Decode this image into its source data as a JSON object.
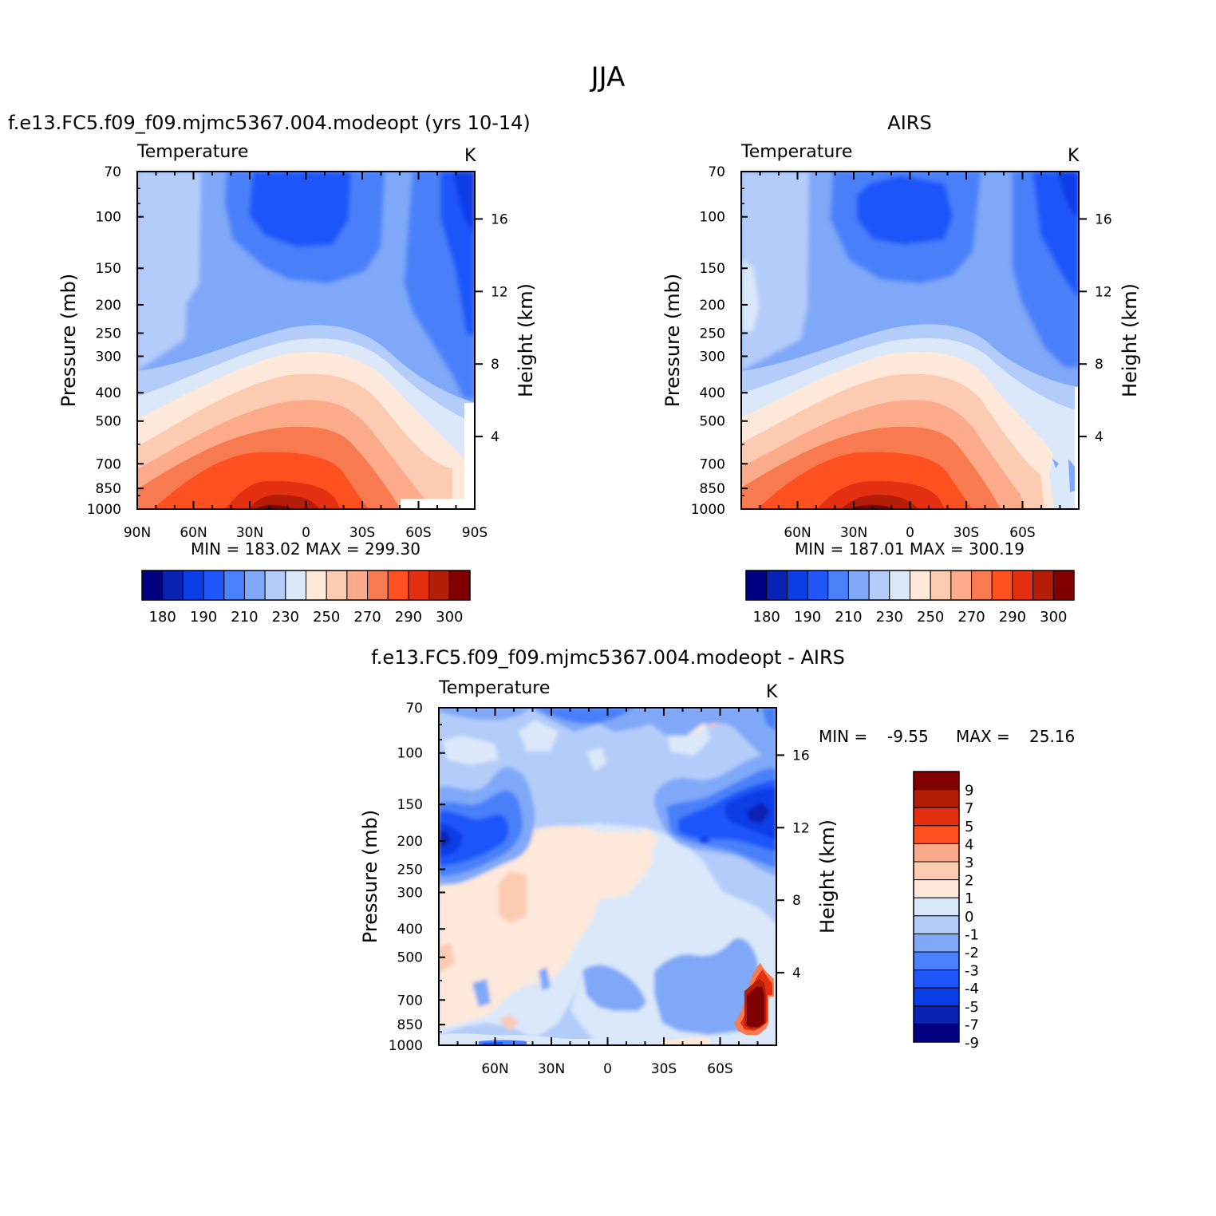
{
  "figure": {
    "title": "JJA"
  },
  "colors": {
    "abs": [
      "#000080",
      "#0a22b4",
      "#0a3ee6",
      "#1e56fa",
      "#4a80fa",
      "#80a8f8",
      "#b4ccfa",
      "#dae8fa",
      "#fde8da",
      "#fdcab2",
      "#fbaa8a",
      "#f87a50",
      "#ff5020",
      "#e43010",
      "#b41e08",
      "#800000"
    ],
    "diff": [
      "#000080",
      "#0a22b4",
      "#0a3ee6",
      "#1e56fa",
      "#4a80fa",
      "#80a8f8",
      "#b4ccfa",
      "#dae8fa",
      "#fde8da",
      "#fdcab2",
      "#fbaa8a",
      "#ff5020",
      "#e43010",
      "#b41e08",
      "#800000"
    ]
  },
  "chart_data": [
    {
      "type": "heatmap",
      "title": "f.e13.FC5.f09_f09.mjmc5367.004.modeopt (yrs 10-14)",
      "subtitle": "Temperature",
      "units": "K",
      "xlabel": "",
      "ylabel": "Pressure (mb)",
      "ylabel_right": "Height (km)",
      "x_ticks": [
        "90N",
        "60N",
        "30N",
        "0",
        "30S",
        "60S",
        "90S"
      ],
      "y_ticks": [
        "70",
        "100",
        "150",
        "200",
        "250",
        "300",
        "400",
        "500",
        "700",
        "850",
        "1000"
      ],
      "y_right_ticks": [
        "4",
        "8",
        "12",
        "16"
      ],
      "ylim": [
        1000,
        70
      ],
      "min_max": "MIN =  183.02   MAX =  299.30",
      "colorbar_labels": [
        "180",
        "190",
        "210",
        "230",
        "250",
        "270",
        "290",
        "300"
      ],
      "colorbar_levels": [
        180,
        190,
        200,
        210,
        220,
        230,
        240,
        250,
        260,
        270,
        280,
        290,
        295,
        300,
        310
      ],
      "approx_range": [
        183.02,
        299.3
      ]
    },
    {
      "type": "heatmap",
      "title": "AIRS",
      "subtitle": "Temperature",
      "units": "K",
      "xlabel": "",
      "ylabel": "Pressure (mb)",
      "ylabel_right": "Height (km)",
      "x_ticks": [
        "60N",
        "30N",
        "0",
        "30S",
        "60S"
      ],
      "y_ticks": [
        "70",
        "100",
        "150",
        "200",
        "250",
        "300",
        "400",
        "500",
        "700",
        "850",
        "1000"
      ],
      "y_right_ticks": [
        "4",
        "8",
        "12",
        "16"
      ],
      "ylim": [
        1000,
        70
      ],
      "min_max": "MIN =  187.01   MAX =  300.19",
      "colorbar_labels": [
        "180",
        "190",
        "210",
        "230",
        "250",
        "270",
        "290",
        "300"
      ],
      "colorbar_levels": [
        180,
        190,
        200,
        210,
        220,
        230,
        240,
        250,
        260,
        270,
        280,
        290,
        295,
        300,
        310
      ],
      "approx_range": [
        187.01,
        300.19
      ]
    },
    {
      "type": "heatmap",
      "title": "f.e13.FC5.f09_f09.mjmc5367.004.modeopt - AIRS",
      "subtitle": "Temperature",
      "units": "K",
      "xlabel": "",
      "ylabel": "Pressure (mb)",
      "ylabel_right": "Height (km)",
      "x_ticks": [
        "60N",
        "30N",
        "0",
        "30S",
        "60S"
      ],
      "y_ticks": [
        "70",
        "100",
        "150",
        "200",
        "250",
        "300",
        "400",
        "500",
        "700",
        "850",
        "1000"
      ],
      "y_right_ticks": [
        "4",
        "8",
        "12",
        "16"
      ],
      "ylim": [
        1000,
        70
      ],
      "min_max_label_min": "MIN =",
      "min_value": "-9.55",
      "min_max_label_max": "MAX =",
      "max_value": "25.16",
      "colorbar_labels": [
        "9",
        "7",
        "5",
        "4",
        "3",
        "2",
        "1",
        "0",
        "-1",
        "-2",
        "-3",
        "-4",
        "-5",
        "-7",
        "-9"
      ],
      "approx_range": [
        -9.55,
        25.16
      ]
    }
  ]
}
